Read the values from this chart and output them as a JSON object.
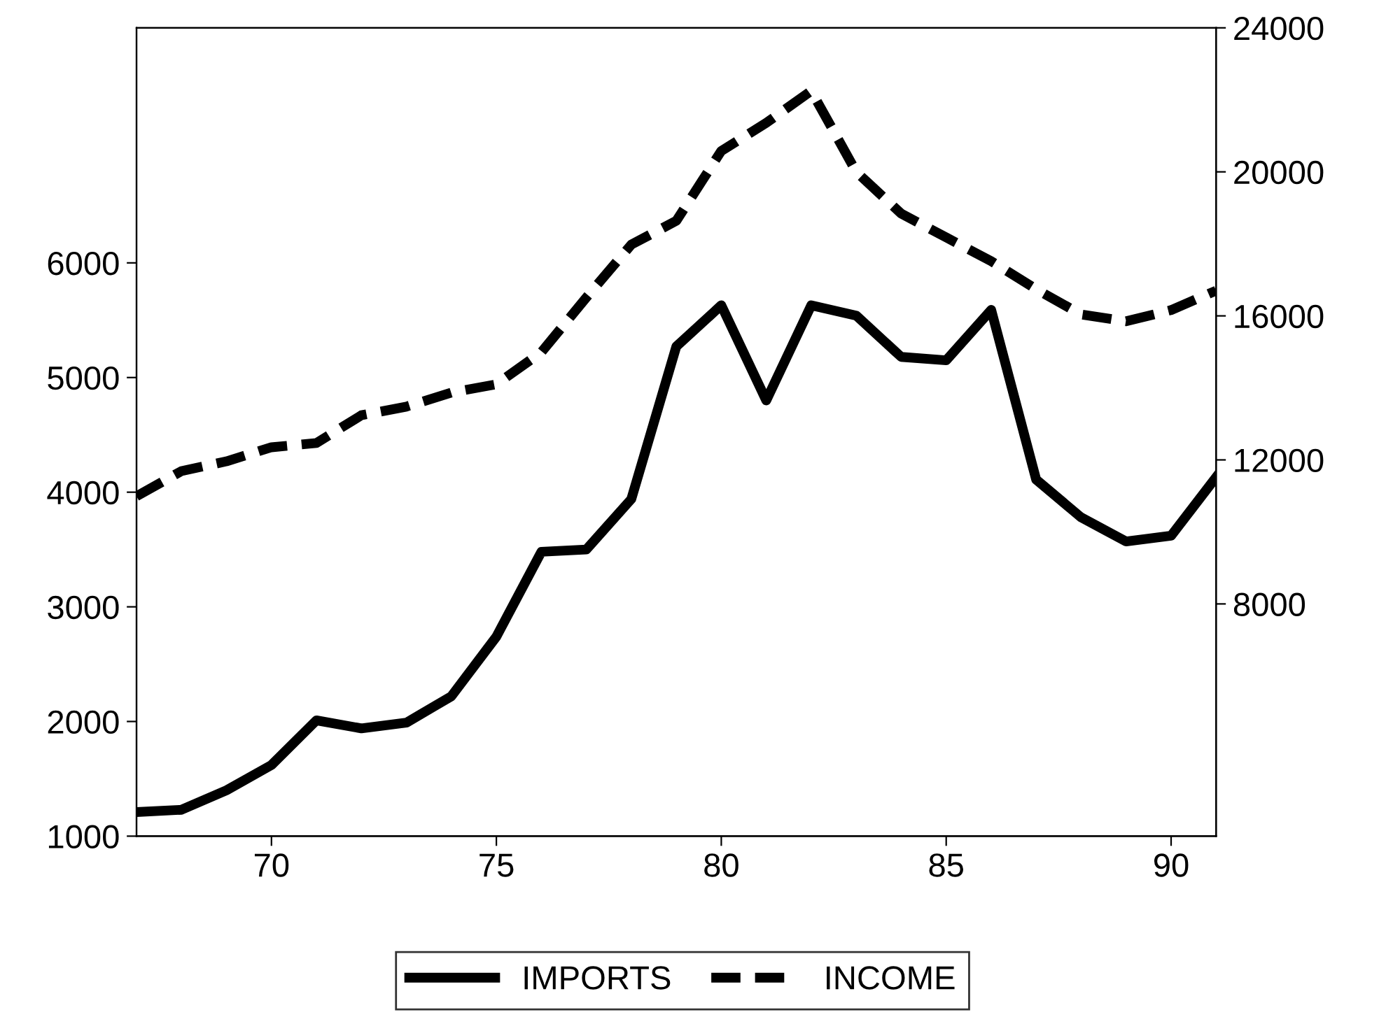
{
  "chart_data": {
    "type": "line",
    "x": [
      67,
      68,
      69,
      70,
      71,
      72,
      73,
      74,
      75,
      76,
      77,
      78,
      79,
      80,
      81,
      82,
      83,
      84,
      85,
      86,
      87,
      88,
      89,
      90,
      91
    ],
    "series": [
      {
        "name": "IMPORTS",
        "color": "#000000",
        "line_style": "solid",
        "values": [
          1210,
          1230,
          1400,
          1620,
          2010,
          1940,
          1990,
          2220,
          2740,
          3480,
          3500,
          3940,
          5270,
          5630,
          4800,
          5630,
          5540,
          5180,
          5150,
          5590,
          4110,
          3780,
          3570,
          3620,
          4130
        ]
      },
      {
        "name": "INCOME",
        "color": "#000000",
        "line_style": "dashed",
        "axis": "y2",
        "values": [
          10990,
          11690,
          11960,
          12350,
          12470,
          13240,
          13480,
          13870,
          14100,
          14990,
          16510,
          17980,
          18640,
          20580,
          21360,
          22250,
          20000,
          18840,
          18180,
          17520,
          16740,
          16040,
          15850,
          16160,
          16700
        ]
      }
    ],
    "xlim": [
      67,
      91
    ],
    "xticks": [
      70,
      75,
      80,
      85,
      90
    ],
    "ylim": [
      1000,
      8050
    ],
    "yticks": [
      1000,
      2000,
      3000,
      4000,
      5000,
      6000
    ],
    "y2lim": [
      1550,
      24000
    ],
    "y2ticks": [
      8000,
      12000,
      16000,
      20000,
      24000
    ],
    "grid": false,
    "legend": "bottom",
    "marker": "none"
  }
}
